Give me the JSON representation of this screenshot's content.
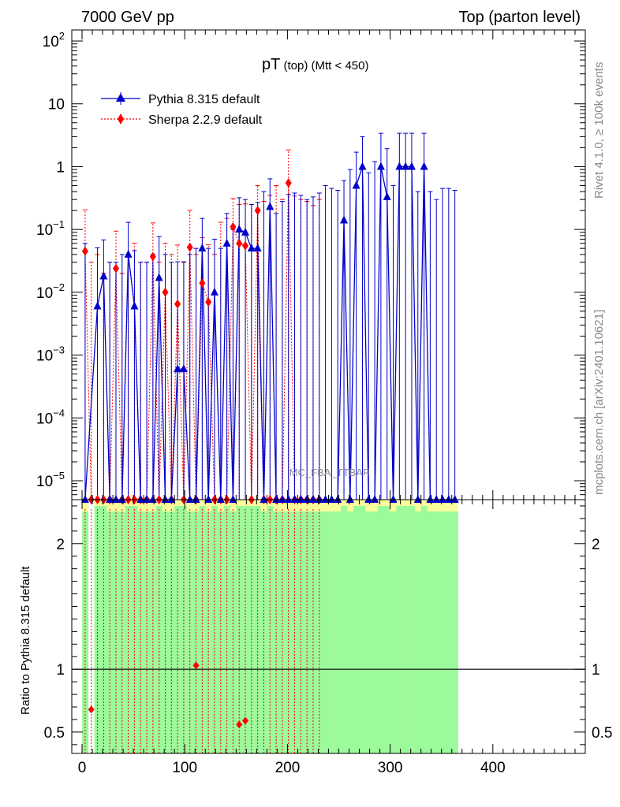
{
  "header": {
    "left": "7000 GeV pp",
    "right": "Top (parton level)"
  },
  "chart_data": {
    "type": "line",
    "title_main": "pT",
    "title_sub": " (top) (Mtt < 450)",
    "watermark": "MC_FBA_TTBAR",
    "side_label_top": "Rivet 4.1.0, ≥ 100k events",
    "side_label_bottom": "mcplots.cern.ch [arXiv:2401.10621]",
    "ratio_ylabel": "Ratio to Pythia 8.315 default",
    "colors": {
      "pythia": "#0000cc",
      "sherpa": "#ff0000",
      "band_inner": "#9bfa9b",
      "band_outer": "#fbfb9c"
    },
    "legend": [
      {
        "name": "Pythia 8.315 default",
        "style": "solid-triangle"
      },
      {
        "name": "Sherpa 2.2.9 default",
        "style": "dotted-diamond"
      }
    ],
    "x_range": [
      -10,
      490
    ],
    "x_ticks": [
      0,
      100,
      200,
      300,
      400
    ],
    "main_y_log_range": [
      5e-06,
      150
    ],
    "main_y_ticks": [
      {
        "v": 100,
        "base": "10",
        "exp": "2"
      },
      {
        "v": 10,
        "base": "10",
        "exp": ""
      },
      {
        "v": 1,
        "base": "1",
        "exp": ""
      },
      {
        "v": 0.1,
        "base": "10",
        "exp": "−1"
      },
      {
        "v": 0.01,
        "base": "10",
        "exp": "−2"
      },
      {
        "v": 0.001,
        "base": "10",
        "exp": "−3"
      },
      {
        "v": 0.0001,
        "base": "10",
        "exp": "−4"
      },
      {
        "v": 1e-05,
        "base": "10",
        "exp": "−5"
      }
    ],
    "ratio_y_range": [
      0.33,
      2.35
    ],
    "ratio_y_ticks": [
      0.5,
      1,
      2
    ],
    "bin_width": 6,
    "pythia": {
      "name": "Pythia 8.315 default",
      "x": [
        3,
        15,
        21,
        27,
        33,
        39,
        45,
        51,
        57,
        63,
        69,
        75,
        81,
        87,
        93,
        99,
        105,
        111,
        117,
        123,
        129,
        135,
        141,
        147,
        153,
        159,
        165,
        171,
        177,
        183,
        189,
        195,
        201,
        207,
        213,
        219,
        225,
        231,
        237,
        243,
        249,
        255,
        261,
        267,
        273,
        279,
        285,
        291,
        297,
        303,
        309,
        315,
        321,
        327,
        333,
        339,
        345,
        351,
        357,
        363
      ],
      "y": [
        0,
        0.006,
        0.018,
        0,
        0,
        0,
        0.04,
        0.006,
        0,
        0,
        0,
        0.017,
        0,
        0,
        0.0006,
        0.0006,
        0,
        0,
        0.05,
        0,
        0.01,
        0,
        0.06,
        0,
        0.1,
        0.09,
        0.05,
        0.05,
        0,
        0.23,
        0,
        0,
        0,
        0,
        0,
        0,
        0,
        0,
        0,
        0,
        0,
        0.14,
        0,
        0.5,
        1,
        0,
        0,
        1,
        0.33,
        0,
        1,
        1,
        1,
        0,
        1,
        0,
        0,
        0,
        0,
        0
      ],
      "yerr_up": [
        0.06,
        0.045,
        0.05,
        0.03,
        0.03,
        0.04,
        0.09,
        0.04,
        0.03,
        0.03,
        0.04,
        0.06,
        0.04,
        0.03,
        0.03,
        0.03,
        0.04,
        0.05,
        0.1,
        0.05,
        0.06,
        0.05,
        0.12,
        0.1,
        0.22,
        0.21,
        0.2,
        0.22,
        0.4,
        0.41,
        0.18,
        0.28,
        0.36,
        0.38,
        0.35,
        0.3,
        0.33,
        0.38,
        0.5,
        0.45,
        0.42,
        0.46,
        0.9,
        1.2,
        2,
        0.8,
        1.2,
        2.4,
        1.6,
        0.5,
        2.4,
        2.4,
        2.4,
        0.4,
        2.4,
        0.4,
        0.3,
        0.45,
        0.45,
        0.42
      ]
    },
    "sherpa": {
      "name": "Sherpa 2.2.9 default",
      "x": [
        3,
        9,
        15,
        21,
        27,
        33,
        39,
        45,
        51,
        57,
        63,
        69,
        75,
        81,
        87,
        93,
        99,
        105,
        111,
        117,
        123,
        129,
        135,
        141,
        147,
        153,
        159,
        165,
        171,
        177,
        183,
        189,
        195,
        201,
        207,
        213,
        219,
        225,
        231
      ],
      "y": [
        0.045,
        0,
        0,
        0,
        0,
        0.024,
        0,
        0,
        0,
        0,
        0,
        0.037,
        0,
        0.01,
        0,
        0.0065,
        0,
        0.052,
        0,
        0.014,
        0.007,
        0,
        0,
        0,
        0.11,
        0.06,
        0.055,
        0,
        0.2,
        0,
        0,
        0,
        0,
        0.55,
        0,
        0,
        0,
        0,
        0
      ],
      "yerr_up": [
        0.16,
        0.03,
        0.04,
        0.02,
        0.03,
        0.07,
        0.02,
        0.04,
        0.06,
        0.03,
        0.03,
        0.09,
        0.03,
        0.05,
        0.04,
        0.05,
        0.03,
        0.15,
        0.04,
        0.06,
        0.05,
        0.04,
        0.13,
        0.15,
        0.2,
        0.19,
        0.2,
        0.25,
        0.3,
        0.28,
        0.35,
        0.5,
        0.3,
        1.3,
        0.34,
        0.3,
        0.28,
        0.24,
        0.3
      ]
    },
    "ratio_points": [
      {
        "x": 9,
        "y": 0.68
      },
      {
        "x": 111,
        "y": 1.03
      },
      {
        "x": 153,
        "y": 0.56
      },
      {
        "x": 159,
        "y": 0.59
      }
    ]
  }
}
